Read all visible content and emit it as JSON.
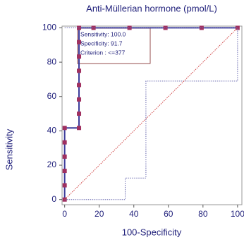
{
  "chart_data": {
    "type": "line",
    "title": "Anti-Müllerian hormone (pmol/L)",
    "x_label": "100-Specificity",
    "y_label": "Sensitivity",
    "xlim": [
      -1.5,
      102.5
    ],
    "ylim": [
      -3,
      101
    ],
    "xticks": [
      0,
      20,
      40,
      60,
      80,
      100
    ],
    "yticks": [
      0,
      20,
      40,
      60,
      80,
      100
    ],
    "annotations": [
      "Sensitivity: 100.0",
      "Specificity: 91.7",
      "Criterion : <=377"
    ],
    "series": [
      {
        "color": "#3a3a9a",
        "marker_color": "#a03060",
        "x": [
          0,
          0,
          0,
          0,
          0,
          0,
          8.3,
          8.3,
          8.3,
          8.3,
          8.3,
          8.3,
          8.3,
          8.3,
          16.7,
          37.5,
          58.3,
          79.2,
          100
        ],
        "values": [
          0,
          8.3,
          16.7,
          25,
          33.3,
          41.7,
          41.7,
          50,
          58.3,
          66.7,
          75,
          83.3,
          91.7,
          100,
          100,
          100,
          100,
          100,
          100
        ]
      },
      {
        "color": "#6a6ab0",
        "dash": true,
        "x": [
          0,
          35,
          35,
          47,
          47,
          100,
          100
        ],
        "values": [
          0,
          0,
          12.5,
          12.5,
          69,
          69,
          100
        ]
      },
      {
        "color": "#6a6ab0",
        "dash": true,
        "x": [
          0,
          100
        ],
        "values": [
          100,
          100
        ]
      },
      {
        "color": "#d04040",
        "dash": true,
        "x": [
          0,
          100
        ],
        "values": [
          0,
          100
        ]
      }
    ]
  }
}
